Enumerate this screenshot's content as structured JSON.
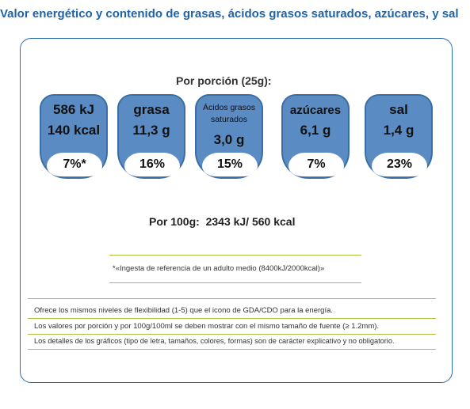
{
  "heading": "Valor energético y contenido de grasas, ácidos grasos saturados, azúcares, y sal",
  "per_portion": "Por porción (25g):",
  "badges": [
    {
      "line1": "586 kJ",
      "line2": "140 kcal",
      "pct": "7%*"
    },
    {
      "line1": "grasa",
      "line2": "11,3 g",
      "pct": "16%"
    },
    {
      "small1": "Ácidos grasos",
      "small2": "saturados",
      "big2": "3,0 g",
      "pct": "15%"
    },
    {
      "line1": "azúcares",
      "line2": "6,1 g",
      "pct": "7%"
    },
    {
      "line1": "sal",
      "line2": "1,4 g",
      "pct": "23%"
    }
  ],
  "per_100g": "Por 100g:  2343 kJ/ 560 kcal",
  "reference_note": "*«Ingesta de referencia de un adulto medio (8400kJ/2000kcal)»",
  "info_lines": [
    "Ofrece los mismos niveles de flexibilidad (1-5) que el icono de GDA/CDO para la energía.",
    "Los valores por porción y por 100g/100ml se deben mostrar con el mismo tamaño de fuente (≥ 1.2mm).",
    "Los detalles de los gráficos (tipo de letra, tamaños, colores, formas) son de carácter explicativo y no obligatorio."
  ],
  "colors": {
    "heading": "#1f63a8",
    "badge_fill": "#5b8bc3",
    "divider": "#a4c23c",
    "panel_border": "#2b6cb0"
  }
}
